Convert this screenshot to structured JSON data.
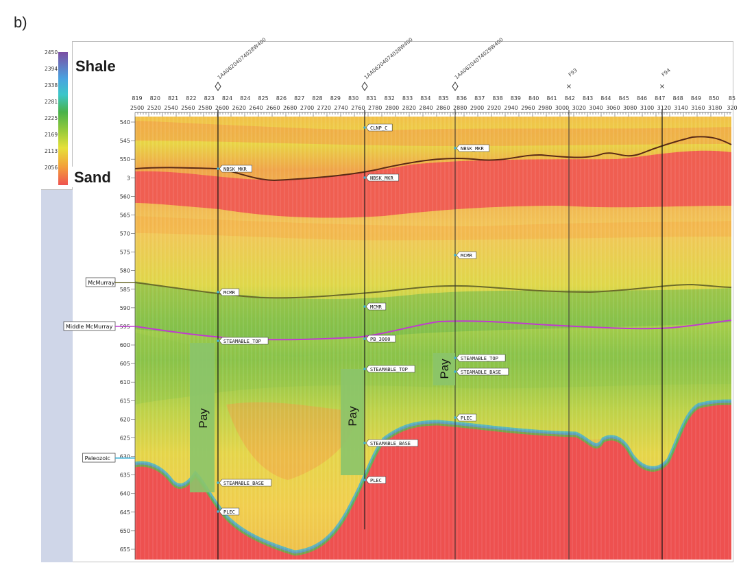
{
  "panel_label": "b)",
  "colorbar": {
    "ticks": [
      "2450",
      "2394",
      "2338",
      "2281",
      "2225",
      "2169",
      "2113",
      "2056"
    ],
    "top_label": "Shale",
    "bottom_label": "Sand",
    "colors": [
      "#7b4fa3",
      "#4aa3e0",
      "#3dc6c9",
      "#49b24a",
      "#9ccc3a",
      "#e6e03a",
      "#f3a03a",
      "#ef5350"
    ]
  },
  "wells": [
    {
      "name": "1AA06204074028W400",
      "cdp": "824",
      "track": "2600",
      "marker": "diamond"
    },
    {
      "name": "1AA06204074028W400",
      "cdp": "832",
      "track": "2780",
      "marker": "diamond"
    },
    {
      "name": "1AA06204074029W400",
      "cdp": "836",
      "track": "2880",
      "marker": "diamond"
    },
    {
      "name": "F93",
      "cdp": "842",
      "track": "3020",
      "marker": "x"
    },
    {
      "name": "F94",
      "cdp": "847",
      "track": "3120",
      "marker": "x"
    }
  ],
  "axis_top": {
    "cdp_labels": [
      "819",
      "820",
      "821",
      "822",
      "823",
      "824",
      "824",
      "825",
      "826",
      "827",
      "828",
      "829",
      "830",
      "831",
      "832",
      "833",
      "834",
      "835",
      "836",
      "837",
      "838",
      "839",
      "840",
      "841",
      "842",
      "843",
      "844",
      "845",
      "846",
      "847",
      "848",
      "849",
      "850",
      "85"
    ],
    "track_labels": [
      "2500",
      "2520",
      "2540",
      "2560",
      "2580",
      "2600",
      "2620",
      "2640",
      "2660",
      "2680",
      "2700",
      "2720",
      "2740",
      "2760",
      "2780",
      "2800",
      "2820",
      "2840",
      "2860",
      "2880",
      "2900",
      "2920",
      "2940",
      "2960",
      "2980",
      "3000",
      "3020",
      "3040",
      "3060",
      "3080",
      "3100",
      "3120",
      "3140",
      "3160",
      "3180",
      "320"
    ]
  },
  "axis_left": {
    "depth_labels": [
      "540",
      "545",
      "550",
      "3",
      "560",
      "565",
      "570",
      "575",
      "580",
      "585",
      "590",
      "595",
      "600",
      "605",
      "610",
      "615",
      "620",
      "625",
      "630",
      "635",
      "640",
      "645",
      "650",
      "655"
    ]
  },
  "horizons": [
    {
      "name": "McMurray",
      "color": "#6b6a2a"
    },
    {
      "name": "Middle McMurray",
      "color": "#c03ad0"
    },
    {
      "name": "Paleozoic",
      "color": "#3bb0d6"
    }
  ],
  "well_markers": [
    {
      "well": 0,
      "labels": [
        "NBSK_MKR",
        "MCMR",
        "STEAMABLE_TOP",
        "STEAMABLE_BASE",
        "PLEC"
      ]
    },
    {
      "well": 1,
      "labels": [
        "CLNP_C",
        "NBSK_MKR",
        "MCMR",
        "PB_3000",
        "STEAMABLE_TOP",
        "STEAMABLE_BASE",
        "PLEC"
      ]
    },
    {
      "well": 2,
      "labels": [
        "NBSK_MKR",
        "MCMR",
        "STEAMABLE_TOP",
        "STEAMABLE_BASE",
        "PLEC"
      ]
    }
  ],
  "pay_zones": [
    {
      "label": "Pay",
      "well": 0
    },
    {
      "label": "Pay",
      "well": 1
    },
    {
      "label": "Pay",
      "well": 2
    }
  ]
}
